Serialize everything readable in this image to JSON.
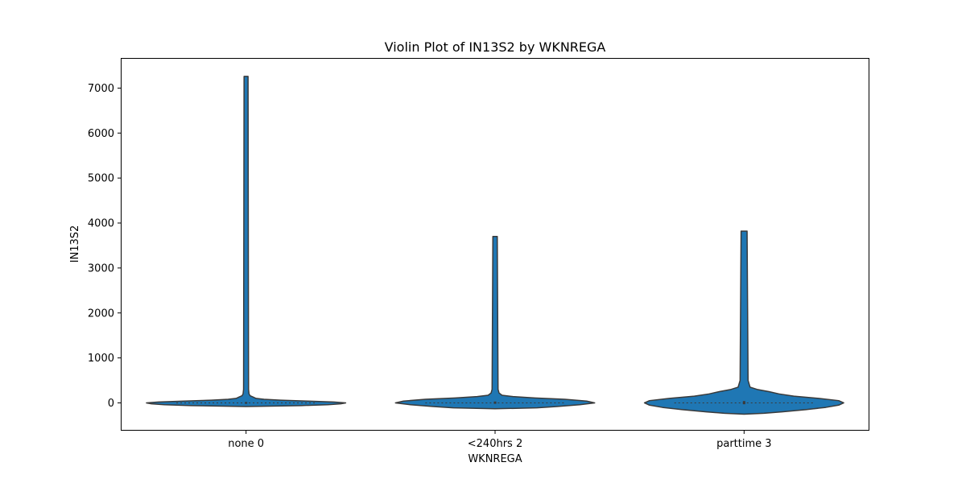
{
  "chart_data": {
    "type": "violin",
    "title": "Violin Plot of IN13S2 by WKNREGA",
    "xlabel": "WKNREGA",
    "ylabel": "IN13S2",
    "categories": [
      "none 0",
      "<240hrs 2",
      "parttime 3"
    ],
    "ylim": [
      -600,
      7670
    ],
    "yticks": [
      0,
      1000,
      2000,
      3000,
      4000,
      5000,
      6000,
      7000
    ],
    "grid": false,
    "legend": "none",
    "colors": {
      "violin_fill": "#1f77b4",
      "violin_edge": "#3a3a3a",
      "axes": "#000000"
    },
    "series": [
      {
        "category": "none 0",
        "min": -80,
        "max": 7260,
        "median": 0,
        "q1": -20,
        "q3": 20,
        "density": [
          [
            -80,
            0
          ],
          [
            -60,
            0.55
          ],
          [
            -40,
            0.82
          ],
          [
            -20,
            0.95
          ],
          [
            0,
            1.0
          ],
          [
            20,
            0.88
          ],
          [
            40,
            0.62
          ],
          [
            60,
            0.35
          ],
          [
            80,
            0.18
          ],
          [
            100,
            0.1
          ],
          [
            130,
            0.07
          ],
          [
            160,
            0.04
          ],
          [
            200,
            0.03
          ],
          [
            300,
            0.025
          ],
          [
            7260,
            0.02
          ]
        ]
      },
      {
        "category": "<240hrs 2",
        "min": -130,
        "max": 3700,
        "median": 0,
        "q1": -20,
        "q3": 30,
        "density": [
          [
            -130,
            0
          ],
          [
            -110,
            0.42
          ],
          [
            -80,
            0.62
          ],
          [
            -40,
            0.85
          ],
          [
            0,
            1.0
          ],
          [
            40,
            0.92
          ],
          [
            80,
            0.7
          ],
          [
            110,
            0.4
          ],
          [
            140,
            0.18
          ],
          [
            170,
            0.07
          ],
          [
            220,
            0.04
          ],
          [
            300,
            0.03
          ],
          [
            3700,
            0.022
          ]
        ]
      },
      {
        "category": "parttime 3",
        "min": -250,
        "max": 3820,
        "median": 0,
        "q1": -30,
        "q3": 40,
        "density": [
          [
            -250,
            0
          ],
          [
            -230,
            0.2
          ],
          [
            -200,
            0.38
          ],
          [
            -150,
            0.62
          ],
          [
            -100,
            0.82
          ],
          [
            -50,
            0.95
          ],
          [
            0,
            1.0
          ],
          [
            50,
            0.95
          ],
          [
            100,
            0.75
          ],
          [
            150,
            0.5
          ],
          [
            200,
            0.35
          ],
          [
            250,
            0.25
          ],
          [
            300,
            0.13
          ],
          [
            350,
            0.06
          ],
          [
            500,
            0.04
          ],
          [
            3820,
            0.03
          ]
        ]
      }
    ]
  }
}
